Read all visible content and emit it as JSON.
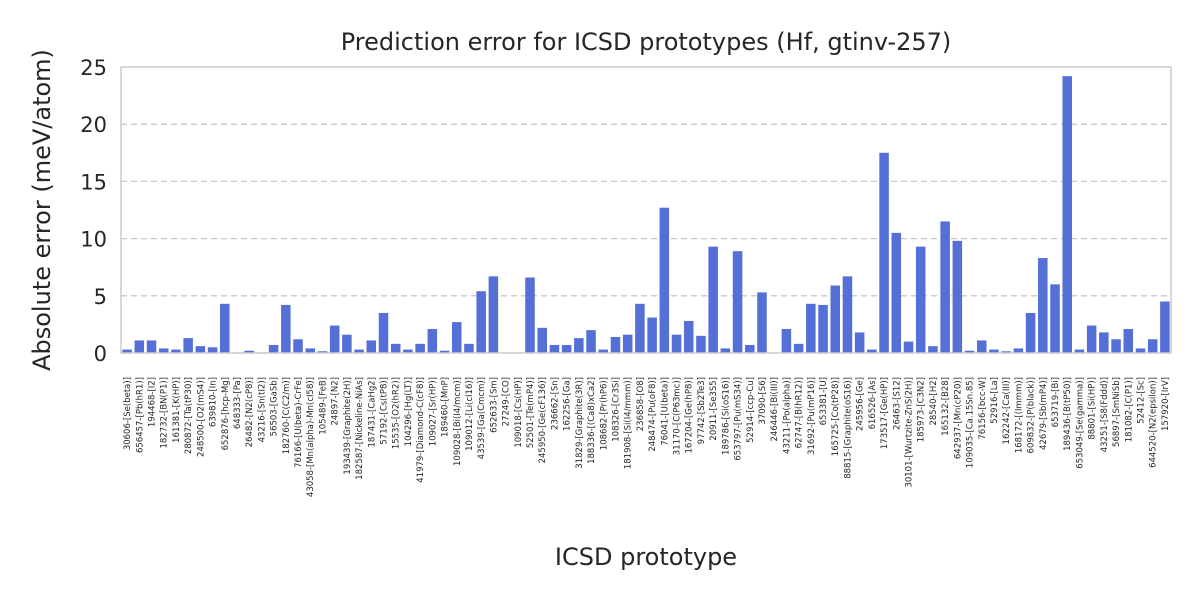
{
  "chart_data": {
    "type": "bar",
    "title": "Prediction error for ICSD prototypes (Hf, gtinv-257)",
    "xlabel": "ICSD prototype",
    "ylabel": "Absolute error (meV/atom)",
    "ylim": [
      0,
      25
    ],
    "yticks": [
      0,
      5,
      10,
      15,
      20,
      25
    ],
    "grid": "y",
    "bar_color": "#5470d6",
    "categories": [
      "30606-[Se(beta)]",
      "656457-[Pb(hR1)]",
      "194468-[I2]",
      "182732-[BN(P1)]",
      "161381-[K(HP)]",
      "280872-[Ta(tP30)]",
      "248500-[O2(mS4)]",
      "639810-[In]",
      "652876-[hcp-Mg]",
      "648333-[Pa]",
      "26482-[N2(cP8)]",
      "43216-[Sn(tI2)]",
      "56503-[GaSb]",
      "182760-[C(C2/m)]",
      "76166-[U(beta)-CrFe]",
      "43058-[Mn(alpha)-Mn(cI58)]",
      "105489-[FeB]",
      "24897-[N2]",
      "193439-[Graphite(2H)]",
      "182587-[Nickeline-NiAs]",
      "187431-[CaHg2]",
      "57192-[Cs(tP8)]",
      "15535-[O2(hR2)]",
      "104296-[Hg(LT)]",
      "41979-[Diamond-C(cF8)]",
      "109027-[Sr(HP)]",
      "189460-[MnP]",
      "109028-[Bi(I4/mcm)]",
      "109012-[Li(cI16)]",
      "43539-[Ga(Cmcm)]",
      "652633-[Sm]",
      "27249-[CO]",
      "109018-[Cs(HP)]",
      "52501-[Te(mP4)]",
      "245950-[Ge(cF136)]",
      "236662-[Sn]",
      "162256-[Ga]",
      "31829-[Graphite(3R)]",
      "188336-[(Ca8)xCa2]",
      "108682-[Pr(hP6)]",
      "108326-[Cr3Si]",
      "181908-[Si(I4/mmm)]",
      "236858-[O8]",
      "248474-[Pu(oF8)]",
      "76041-[U(beta)]",
      "31170-[C(P63mc)]",
      "167204-[Ge(hP8)]",
      "97742-[Sb2Te3]",
      "20911-[Se3S5]",
      "189786-[Si(oS16)]",
      "653797-[Pu(mS34)]",
      "52914-[ccp-Cu]",
      "37090-[S6]",
      "246446-[Bi(III)]",
      "43211-[Po(alpha)]",
      "62747-[B(hR12)]",
      "31692-[Pu(mP16)]",
      "653381-[U]",
      "165725-[Co(tP28)]",
      "88815-[Graphite(oS16)]",
      "245956-[Ge]",
      "616526-[As]",
      "173517-[Ge(HP)]",
      "26463-[S12]",
      "30101-[Wurtzite-ZnS(2H)]",
      "185973-[C3N2]",
      "28540-[H2]",
      "165132-[B28]",
      "642937-[Mn(cP20)]",
      "109035-[Ca.15Sn.85]",
      "76156-[bcc-W]",
      "52916-[La]",
      "162242-[Ca(III)]",
      "168172-[(Immm)]",
      "609832-[P(black)]",
      "42679-[Sb(mP4)]",
      "653719-[Bi]",
      "189436-[B(tP50)]",
      "653049-[Se(gamma)]",
      "88801-[Si(HP)]",
      "43251-[S8(Fddd)]",
      "56897-[SmNiSb]",
      "181082-[C(P1)]",
      "52412-[Sc]",
      "644520-[N2(epsilon)]",
      "157920-[IrV]"
    ],
    "values": [
      0.3,
      1.1,
      1.1,
      0.4,
      0.3,
      1.3,
      0.6,
      0.5,
      4.3,
      0.05,
      0.2,
      0.05,
      0.7,
      4.2,
      1.2,
      0.4,
      0.15,
      2.4,
      1.6,
      0.3,
      1.1,
      3.5,
      0.8,
      0.3,
      0.8,
      2.1,
      0.2,
      2.7,
      0.8,
      5.4,
      6.7,
      0.05,
      0.05,
      6.6,
      2.2,
      0.7,
      0.7,
      1.3,
      2.0,
      0.3,
      1.4,
      1.6,
      4.3,
      3.1,
      12.7,
      1.6,
      2.8,
      1.5,
      9.3,
      0.4,
      8.9,
      0.7,
      5.3,
      0.05,
      2.1,
      0.8,
      4.3,
      4.2,
      5.9,
      6.7,
      1.8,
      0.3,
      17.5,
      10.5,
      1.0,
      9.3,
      0.6,
      11.5,
      9.8,
      0.2,
      1.1,
      0.3,
      0.15,
      0.4,
      3.5,
      8.3,
      6.0,
      24.2,
      0.3,
      2.4,
      1.8,
      1.2,
      2.1,
      0.4,
      1.2,
      4.5
    ]
  }
}
